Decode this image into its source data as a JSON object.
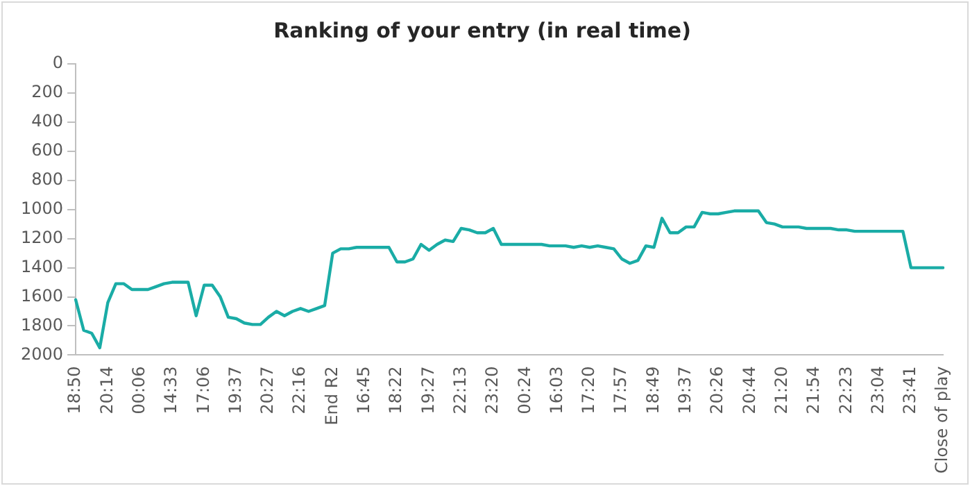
{
  "chart_data": {
    "type": "line",
    "title": "Ranking of your entry (in real time)",
    "categories": [
      "18:50",
      null,
      null,
      null,
      "20:14",
      null,
      null,
      null,
      "00:06",
      null,
      null,
      null,
      "14:33",
      null,
      null,
      null,
      "17:06",
      null,
      null,
      null,
      "19:37",
      null,
      null,
      null,
      "20:27",
      null,
      null,
      null,
      "22:16",
      null,
      null,
      null,
      "End R2",
      null,
      null,
      null,
      "16:45",
      null,
      null,
      null,
      "18:22",
      null,
      null,
      null,
      "19:27",
      null,
      null,
      null,
      "22:13",
      null,
      null,
      null,
      "23:20",
      null,
      null,
      null,
      "00:24",
      null,
      null,
      null,
      "16:03",
      null,
      null,
      null,
      "17:20",
      null,
      null,
      null,
      "17:57",
      null,
      null,
      null,
      "18:49",
      null,
      null,
      null,
      "19:37",
      null,
      null,
      null,
      "20:26",
      null,
      null,
      null,
      "20:44",
      null,
      null,
      null,
      "21:20",
      null,
      null,
      null,
      "21:54",
      null,
      null,
      null,
      "22:23",
      null,
      null,
      null,
      "23:04",
      null,
      null,
      null,
      "23:41",
      null,
      null,
      null,
      "Close of play"
    ],
    "series": [
      {
        "color": "#1aaca6",
        "values": [
          1620,
          1830,
          1850,
          1950,
          1640,
          1510,
          1510,
          1550,
          1550,
          1550,
          1530,
          1510,
          1500,
          1500,
          1500,
          1730,
          1520,
          1520,
          1600,
          1740,
          1750,
          1780,
          1790,
          1790,
          1740,
          1700,
          1730,
          1700,
          1680,
          1700,
          1680,
          1660,
          1300,
          1270,
          1270,
          1260,
          1260,
          1260,
          1260,
          1260,
          1360,
          1360,
          1340,
          1240,
          1280,
          1240,
          1210,
          1220,
          1130,
          1140,
          1160,
          1160,
          1130,
          1240,
          1240,
          1240,
          1240,
          1240,
          1240,
          1250,
          1250,
          1250,
          1260,
          1250,
          1260,
          1250,
          1260,
          1270,
          1340,
          1370,
          1350,
          1250,
          1260,
          1060,
          1160,
          1160,
          1120,
          1120,
          1020,
          1030,
          1030,
          1020,
          1010,
          1010,
          1010,
          1010,
          1090,
          1100,
          1120,
          1120,
          1120,
          1130,
          1130,
          1130,
          1130,
          1140,
          1140,
          1150,
          1150,
          1150,
          1150,
          1150,
          1150,
          1150,
          1400,
          1400,
          1400,
          1400,
          1400
        ]
      }
    ],
    "ylim": [
      2000,
      0
    ],
    "yticks": [
      0,
      200,
      400,
      600,
      800,
      1000,
      1200,
      1400,
      1600,
      1800,
      2000
    ],
    "grid": false,
    "legend": false,
    "marker": "none",
    "line_style": "solid"
  }
}
